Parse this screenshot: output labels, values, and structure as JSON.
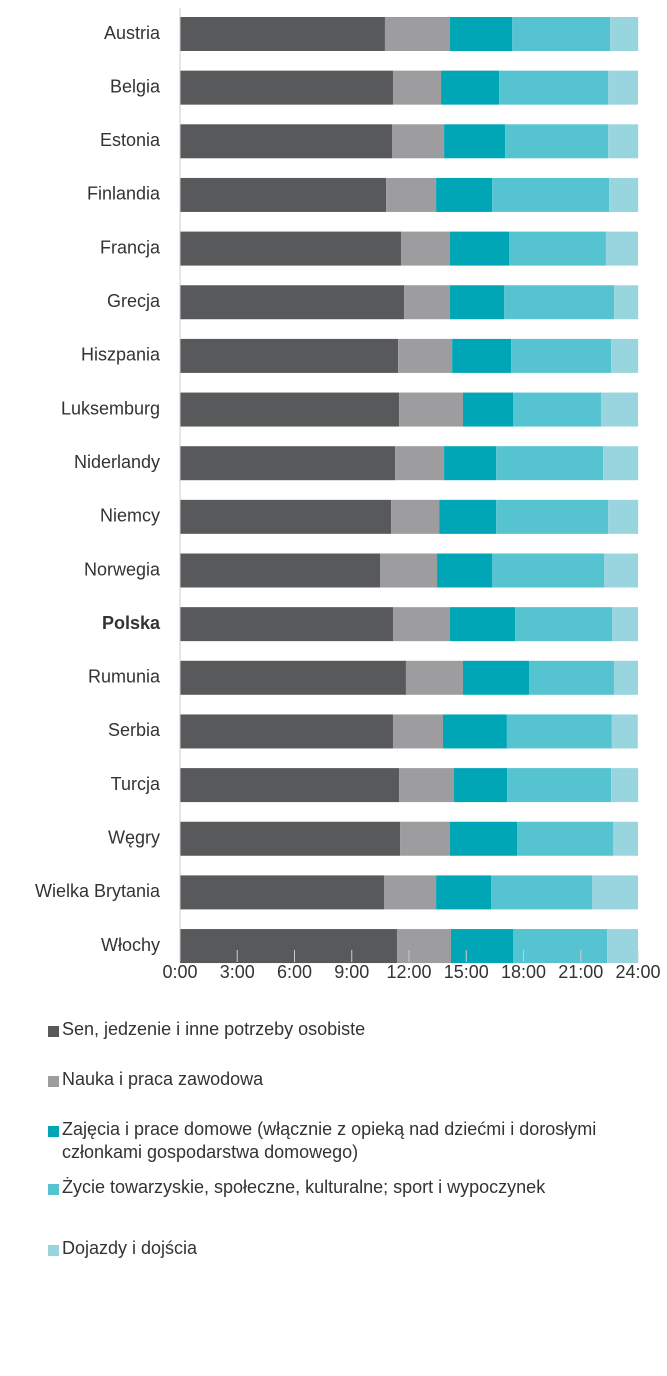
{
  "chart_data": {
    "type": "stacked-barh",
    "categories": [
      "Austria",
      "Belgia",
      "Estonia",
      "Finlandia",
      "Francja",
      "Grecja",
      "Hiszpania",
      "Luksemburg",
      "Niderlandy",
      "Niemcy",
      "Norwegia",
      "Polska",
      "Rumunia",
      "Serbia",
      "Turcja",
      "Węgry",
      "Wielka Brytania",
      "Włochy"
    ],
    "highlight_category": "Polska",
    "series": [
      {
        "name": "Sen, jedzenie i inne potrzeby osobiste",
        "color": "#58595b",
        "values": [
          10.74,
          11.16,
          11.11,
          10.8,
          11.58,
          11.74,
          11.43,
          11.48,
          11.27,
          11.06,
          10.48,
          11.16,
          11.84,
          11.16,
          11.48,
          11.53,
          10.69,
          11.37
        ]
      },
      {
        "name": "Nauka i praca zawodowa",
        "color": "#9d9d9f",
        "values": [
          3.41,
          2.52,
          2.73,
          2.62,
          2.57,
          2.41,
          2.83,
          3.35,
          2.57,
          2.52,
          2.99,
          2.99,
          2.99,
          2.62,
          2.88,
          2.62,
          2.73,
          2.83
        ]
      },
      {
        "name": "Zajęcia i prace domowe (włącznie z opieką nad dziećmi i dorosłymi członkami gospodarstwa domowego)",
        "color": "#00a6b6",
        "values": [
          3.25,
          3.04,
          3.2,
          2.94,
          3.09,
          2.83,
          3.09,
          2.62,
          2.73,
          2.99,
          2.88,
          3.41,
          3.46,
          3.35,
          2.78,
          3.51,
          2.88,
          3.25
        ]
      },
      {
        "name": "Życie towarzyskie, społeczne, kulturalne; sport i wypoczynek",
        "color": "#56c3d0",
        "values": [
          5.14,
          5.71,
          5.4,
          6.13,
          5.08,
          5.77,
          5.24,
          4.61,
          5.61,
          5.87,
          5.87,
          5.08,
          4.45,
          5.5,
          5.45,
          5.03,
          5.29,
          4.93
        ]
      },
      {
        "name": "Dojazdy i dojścia",
        "color": "#98d5df",
        "values": [
          1.47,
          1.57,
          1.57,
          1.52,
          1.68,
          1.26,
          1.42,
          1.94,
          1.83,
          1.57,
          1.78,
          1.36,
          1.26,
          1.36,
          1.42,
          1.31,
          2.41,
          1.62
        ]
      }
    ],
    "xlim": [
      0,
      24
    ],
    "xticks": [
      {
        "value": 0,
        "label": "0:00"
      },
      {
        "value": 3,
        "label": "3:00"
      },
      {
        "value": 6,
        "label": "6:00"
      },
      {
        "value": 9,
        "label": "9:00"
      },
      {
        "value": 12,
        "label": "12:00"
      },
      {
        "value": 15,
        "label": "15:00"
      },
      {
        "value": 18,
        "label": "18:00"
      },
      {
        "value": 21,
        "label": "21:00"
      },
      {
        "value": 24,
        "label": "24:00"
      }
    ],
    "legend": "bottom"
  }
}
